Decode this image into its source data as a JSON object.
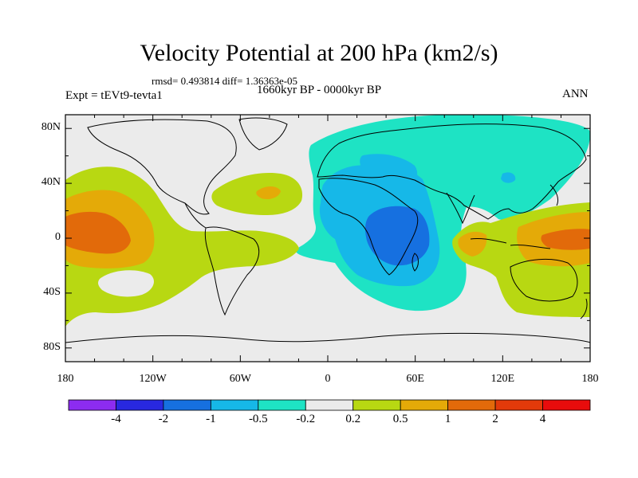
{
  "title": "Velocity Potential at 200 hPa (km2/s)",
  "stats": "rmsd= 0.493814 diff= 1.36363e-05",
  "experiment": "Expt = tEVt9-tevta1",
  "period": "1660kyr BP - 0000kyr BP",
  "season": "ANN",
  "map": {
    "projection": "cylindrical equidistant",
    "lon_range": [
      -180,
      180
    ],
    "lat_range": [
      -90,
      90
    ],
    "x_ticks": [
      {
        "lon": -180,
        "label": "180"
      },
      {
        "lon": -120,
        "label": "120W"
      },
      {
        "lon": -60,
        "label": "60W"
      },
      {
        "lon": 0,
        "label": "0"
      },
      {
        "lon": 60,
        "label": "60E"
      },
      {
        "lon": 120,
        "label": "120E"
      },
      {
        "lon": 180,
        "label": "180"
      }
    ],
    "y_ticks": [
      {
        "lat": 80,
        "label": "80N"
      },
      {
        "lat": 40,
        "label": "40N"
      },
      {
        "lat": 0,
        "label": "0"
      },
      {
        "lat": -40,
        "label": "40S"
      },
      {
        "lat": -80,
        "label": "80S"
      }
    ]
  },
  "colorbar": {
    "colors": [
      "#8c2cf0",
      "#2828e0",
      "#1670e0",
      "#16b8e8",
      "#1ee3c4",
      "#ebebeb",
      "#b8d812",
      "#e4aa08",
      "#e26a0a",
      "#e23a0a",
      "#e80c0c"
    ],
    "labels": [
      "-4",
      "-2",
      "-1",
      "-0.5",
      "-0.2",
      "0.2",
      "0.5",
      "1",
      "2",
      "4"
    ]
  }
}
